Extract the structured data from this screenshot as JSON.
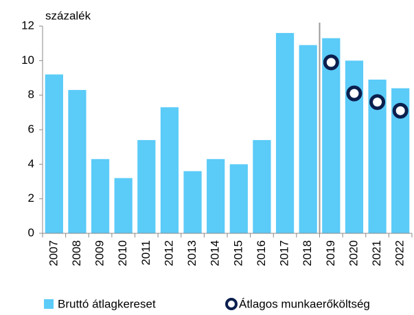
{
  "chart_data": {
    "type": "bar",
    "y_label": "százalék",
    "categories": [
      "2007",
      "2008",
      "2009",
      "2010",
      "2011",
      "2012",
      "2013",
      "2014",
      "2015",
      "2016",
      "2017",
      "2018",
      "2019",
      "2020",
      "2021",
      "2022"
    ],
    "series": [
      {
        "name": "Bruttó átlagkereset",
        "type": "bar",
        "color": "#5bcbf8",
        "values": [
          9.2,
          8.3,
          4.3,
          3.2,
          5.4,
          7.3,
          3.6,
          4.3,
          4.0,
          5.4,
          11.6,
          10.9,
          11.3,
          10.0,
          8.9,
          8.4
        ]
      },
      {
        "name": "Átlagos munkaerőköltség",
        "type": "scatter",
        "color": "#0b1f4e",
        "values": [
          null,
          null,
          null,
          null,
          null,
          null,
          null,
          null,
          null,
          null,
          null,
          null,
          9.9,
          8.1,
          7.6,
          7.1
        ]
      }
    ],
    "ylim": [
      0,
      12
    ],
    "yticks": [
      0,
      2,
      4,
      6,
      8,
      10,
      12
    ],
    "legend": "bottom"
  }
}
